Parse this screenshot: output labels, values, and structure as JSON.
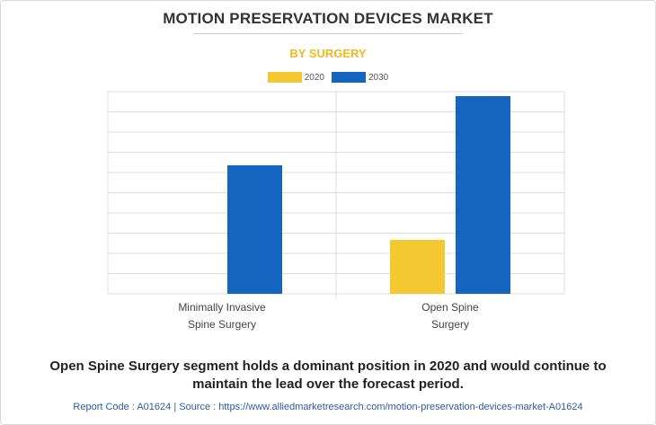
{
  "chart_title": "MOTION PRESERVATION DEVICES MARKET",
  "chart_subtitle": "BY SURGERY",
  "colors": {
    "title": "#333333",
    "subtitle": "#f5b71b",
    "series_2020": "#f4c830",
    "series_2030": "#1565c0",
    "grid": "#dcdcdc",
    "axis": "#bdbdbd",
    "footer": "#222222",
    "report": "#2a5caa"
  },
  "legend": [
    {
      "label": "2020",
      "color": "#f4c830"
    },
    {
      "label": "2030",
      "color": "#1565c0"
    }
  ],
  "chart_data": {
    "type": "bar",
    "title": "MOTION PRESERVATION DEVICES MARKET",
    "subtitle": "BY SURGERY",
    "xlabel": "",
    "ylabel": "",
    "categories": [
      [
        "Minimally Invasive",
        "Spine Surgery"
      ],
      [
        "Open Spine",
        "Surgery"
      ]
    ],
    "series": [
      {
        "name": "2020",
        "values": [
          0,
          60
        ]
      },
      {
        "name": "2030",
        "values": [
          143,
          220
        ]
      }
    ],
    "ylim": [
      0,
      225
    ],
    "grid": true,
    "gridlines": 10,
    "legend_position": "top-center",
    "y_tick_labels_shown": false
  },
  "footer": {
    "line1": "Open Spine Surgery segment holds a dominant position in 2020 and would continue to",
    "line2": "maintain the lead over the forecast period.",
    "report_code": "Report Code : A01624",
    "separator": "|",
    "source": "Source : https://www.alliedmarketresearch.com/motion-preservation-devices-market-A01624"
  }
}
